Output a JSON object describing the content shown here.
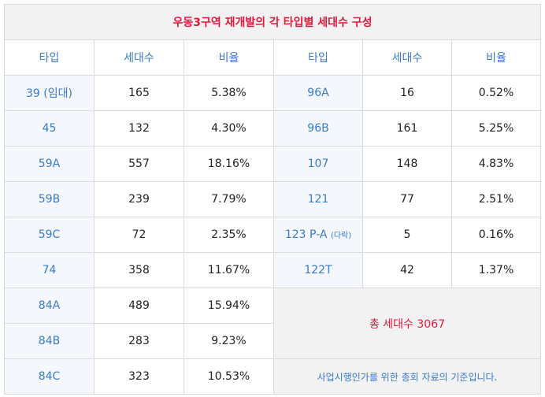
{
  "title": "우동3구역 재개발의 각 타입별 세대수 구성",
  "headers": {
    "type": "타입",
    "units": "세대수",
    "ratio": "비율"
  },
  "rows": [
    {
      "l_type": "39 (임대)",
      "l_units": "165",
      "l_ratio": "5.38%",
      "r_type": "96A",
      "r_units": "16",
      "r_ratio": "0.52%"
    },
    {
      "l_type": "45",
      "l_units": "132",
      "l_ratio": "4.30%",
      "r_type": "96B",
      "r_units": "161",
      "r_ratio": "5.25%"
    },
    {
      "l_type": "59A",
      "l_units": "557",
      "l_ratio": "18.16%",
      "r_type": "107",
      "r_units": "148",
      "r_ratio": "4.83%"
    },
    {
      "l_type": "59B",
      "l_units": "239",
      "l_ratio": "7.79%",
      "r_type": "121",
      "r_units": "77",
      "r_ratio": "2.51%"
    },
    {
      "l_type": "59C",
      "l_units": "72",
      "l_ratio": "2.35%",
      "r_type": "123 P-A",
      "r_type_sub": "(다락)",
      "r_units": "5",
      "r_ratio": "0.16%"
    },
    {
      "l_type": "74",
      "l_units": "358",
      "l_ratio": "11.67%",
      "r_type": "122T",
      "r_units": "42",
      "r_ratio": "1.37%"
    },
    {
      "l_type": "84A",
      "l_units": "489",
      "l_ratio": "15.94%"
    },
    {
      "l_type": "84B",
      "l_units": "283",
      "l_ratio": "9.23%"
    },
    {
      "l_type": "84C",
      "l_units": "323",
      "l_ratio": "10.53%"
    }
  ],
  "total": "총 세대수 3067",
  "note": "사업시행인가를 위한 총회 자료의 기준입니다."
}
